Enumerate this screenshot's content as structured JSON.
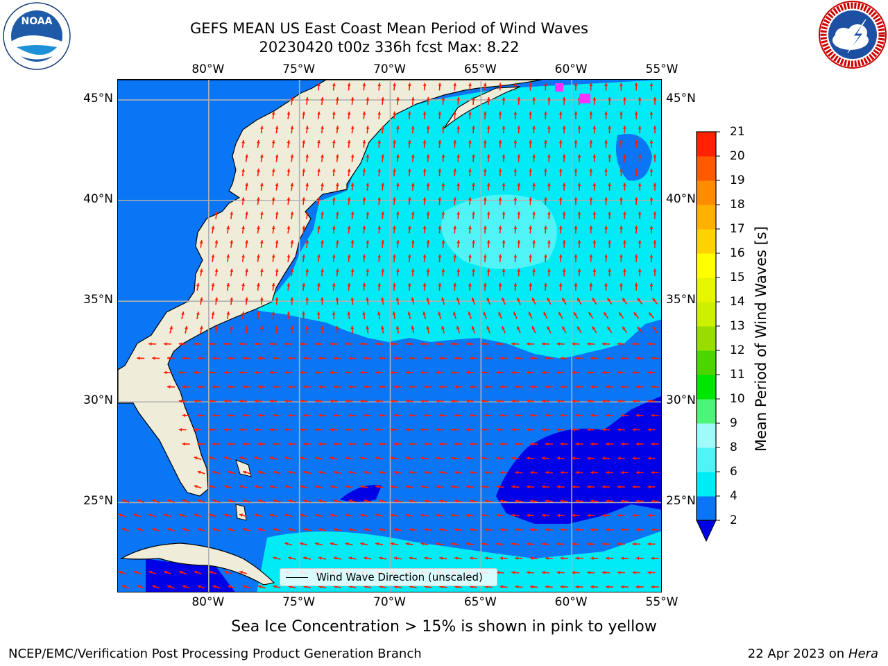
{
  "title": {
    "line1": "GEFS MEAN US East Coast Mean Period of Wind Waves",
    "line2": "20230420 t00z 336h fcst   Max: 8.22"
  },
  "logos": {
    "left": {
      "text": "NOAA",
      "ring_text": "NATIONAL OCEANIC AND ATMOSPHERIC ADMINISTRATION · U.S. DEPARTMENT OF COMMERCE"
    },
    "right": {
      "ring_text": "NATIONAL WEATHER SERVICE"
    }
  },
  "axes": {
    "lon_labels": [
      "80°W",
      "75°W",
      "70°W",
      "65°W",
      "60°W",
      "55°W"
    ],
    "lat_labels": [
      "45°N",
      "40°N",
      "35°N",
      "30°N",
      "25°N"
    ],
    "lon_range": [
      -85,
      -55
    ],
    "lat_range": [
      20.5,
      46
    ]
  },
  "legend": {
    "label": "Wind Wave Direction (unscaled)"
  },
  "colorbar": {
    "title": "Mean Period of Wind Waves [s]",
    "ticks": [
      "2",
      "4",
      "6",
      "8",
      "9",
      "10",
      "11",
      "12",
      "13",
      "14",
      "15",
      "16",
      "17",
      "18",
      "19",
      "20",
      "21"
    ],
    "colors": [
      "#0a76f5",
      "#00ebf5",
      "#50f4f7",
      "#a0fafa",
      "#4cf57a",
      "#00e600",
      "#4cd600",
      "#99dd00",
      "#ccf000",
      "#e6f500",
      "#ffff00",
      "#ffd200",
      "#ffb000",
      "#ff8c00",
      "#ff5a00",
      "#ff2200",
      "#ff0000"
    ],
    "extend_color": "#0000e6"
  },
  "colors": {
    "land": "#efedda",
    "sea_ice": "#ff33ff"
  },
  "note": "Sea Ice Concentration > 15% is shown in pink to yellow",
  "footer": {
    "left": "NCEP/EMC/Verification Post Processing Product Generation Branch",
    "date": "22 Apr 2023 on ",
    "machine": "Hera"
  }
}
